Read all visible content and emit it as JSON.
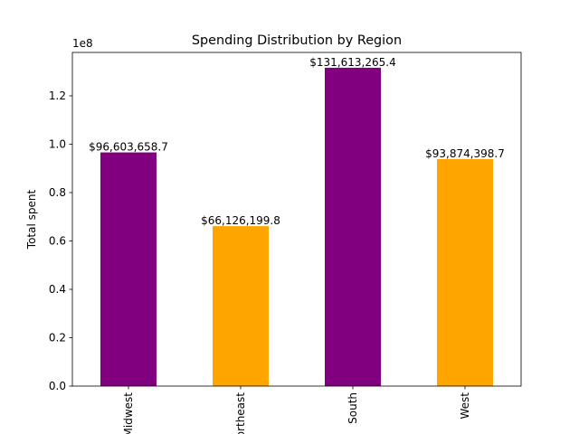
{
  "chart_data": {
    "type": "bar",
    "title": "Spending Distribution by Region",
    "xlabel": "",
    "ylabel": "Total spent",
    "y_offset_label": "1e8",
    "categories": [
      "Midwest",
      "Northeast",
      "South",
      "West"
    ],
    "values": [
      96603658.7,
      66126199.8,
      131613265.4,
      93874398.7
    ],
    "value_labels": [
      "$96,603,658.7",
      "$66,126,199.8",
      "$131,613,265.4",
      "$93,874,398.7"
    ],
    "colors": [
      "#800080",
      "#FFA500",
      "#800080",
      "#FFA500"
    ],
    "ylim": [
      0,
      137934960
    ],
    "yticks": [
      0,
      20000000,
      40000000,
      60000000,
      80000000,
      100000000,
      120000000
    ],
    "ytick_labels": [
      "0.0",
      "0.2",
      "0.4",
      "0.6",
      "0.8",
      "1.0",
      "1.2"
    ],
    "grid": false,
    "x_tick_rotation": "vertical"
  }
}
